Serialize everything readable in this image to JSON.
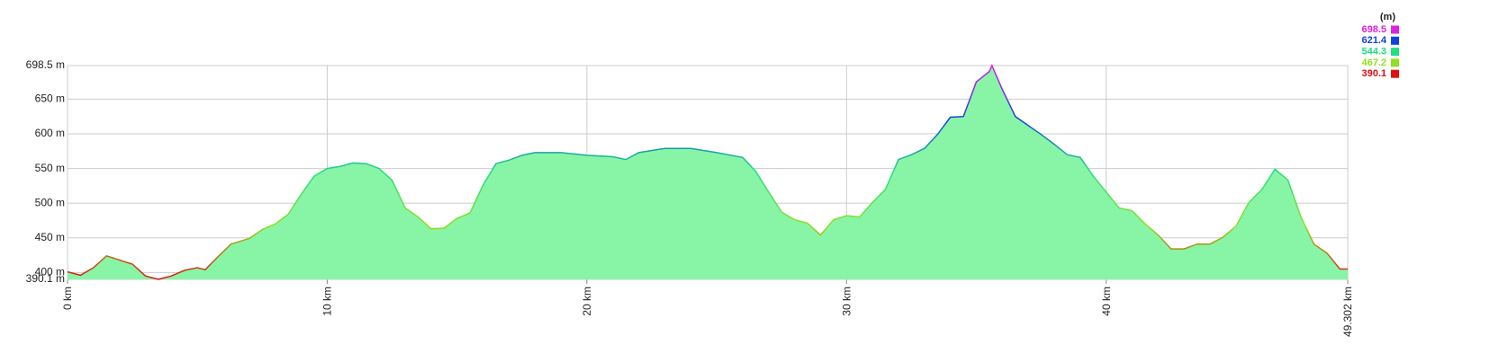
{
  "chart_data": {
    "type": "elevation",
    "legend_title": "(m)",
    "x": [
      0,
      0.5,
      1,
      1.5,
      2,
      2.5,
      3,
      3.5,
      4,
      4.5,
      5,
      5.3,
      5.8,
      6.3,
      7,
      7.5,
      8,
      8.5,
      9,
      9.5,
      10,
      10.5,
      11,
      11.5,
      12,
      12.5,
      13,
      13.5,
      14,
      14.5,
      15,
      15.5,
      16,
      16.5,
      17,
      17.5,
      18,
      19,
      20,
      21,
      21.5,
      22,
      23,
      24,
      25,
      26,
      26.5,
      27,
      27.5,
      28,
      28.5,
      29,
      29.5,
      30,
      30.5,
      31,
      31.5,
      32,
      32.5,
      33,
      33.5,
      34,
      34.5,
      35,
      35.5,
      35.6,
      36,
      36.5,
      37,
      37.5,
      38,
      38.5,
      39,
      39.5,
      40,
      40.5,
      41,
      41.5,
      42,
      42.5,
      43,
      43.5,
      44,
      44.5,
      45,
      45.5,
      46,
      46.5,
      47,
      47.5,
      48,
      48.5,
      49,
      49.302
    ],
    "values": [
      401,
      396,
      407,
      424,
      418,
      412,
      395,
      390.1,
      395,
      403,
      407,
      404,
      423,
      441,
      449,
      462,
      470,
      484,
      513,
      539,
      550,
      553,
      558,
      557,
      550,
      533,
      493,
      480,
      463,
      464,
      478,
      486,
      526,
      557,
      562,
      569,
      573,
      573,
      569,
      567,
      563,
      573,
      579,
      579,
      573,
      566,
      546,
      516,
      487,
      476,
      471,
      454,
      476,
      482,
      480,
      501,
      520,
      563,
      570,
      579,
      599,
      624,
      625,
      675,
      690,
      698.5,
      664,
      625,
      612,
      599,
      585,
      570,
      566,
      539,
      516,
      493,
      489,
      470,
      454,
      434,
      434,
      441,
      441,
      451,
      467,
      501,
      520,
      549,
      533,
      480,
      441,
      428,
      405,
      405
    ],
    "fill": "#88f5a6",
    "grid": true,
    "xlim": [
      0,
      49.302
    ],
    "xticks": [
      {
        "value": 0,
        "label": "0 km"
      },
      {
        "value": 10,
        "label": "10 km"
      },
      {
        "value": 20,
        "label": "20 km"
      },
      {
        "value": 30,
        "label": "30 km"
      },
      {
        "value": 40,
        "label": "40 km"
      },
      {
        "value": 49.302,
        "label": "49.302 km"
      }
    ],
    "ylim": [
      390.1,
      698.5
    ],
    "yticks": [
      {
        "value": 390.1,
        "label": "390.1 m"
      },
      {
        "value": 400,
        "label": "400 m"
      },
      {
        "value": 450,
        "label": "450 m"
      },
      {
        "value": 500,
        "label": "500 m"
      },
      {
        "value": 550,
        "label": "550 m"
      },
      {
        "value": 600,
        "label": "600 m"
      },
      {
        "value": 650,
        "label": "650 m"
      },
      {
        "value": 698.5,
        "label": "698.5 m"
      }
    ],
    "color_scale": [
      {
        "value": 698.5,
        "color": "#e020e0"
      },
      {
        "value": 621.4,
        "color": "#1040e0"
      },
      {
        "value": 544.3,
        "color": "#20e080"
      },
      {
        "value": 467.2,
        "color": "#90e020"
      },
      {
        "value": 390.1,
        "color": "#e01010"
      }
    ]
  }
}
